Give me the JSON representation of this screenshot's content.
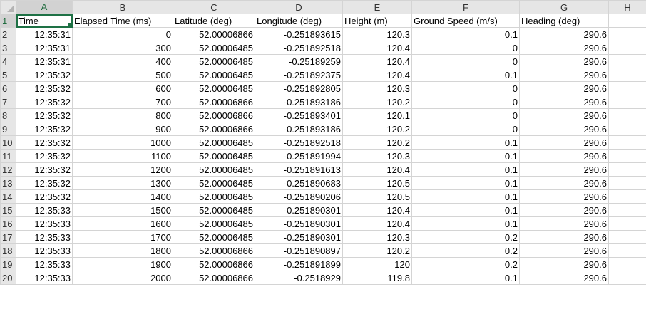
{
  "column_headers": [
    "A",
    "B",
    "C",
    "D",
    "E",
    "F",
    "G",
    "H"
  ],
  "header_row": [
    "Time",
    "Elapsed Time (ms)",
    "Latitude (deg)",
    "Longitude (deg)",
    "Height (m)",
    "Ground Speed (m/s)",
    "Heading (deg)",
    ""
  ],
  "rows": [
    [
      "12:35:31",
      "0",
      "52.00006866",
      "-0.251893615",
      "120.3",
      "0.1",
      "290.6"
    ],
    [
      "12:35:31",
      "300",
      "52.00006485",
      "-0.251892518",
      "120.4",
      "0",
      "290.6"
    ],
    [
      "12:35:31",
      "400",
      "52.00006485",
      "-0.25189259",
      "120.4",
      "0",
      "290.6"
    ],
    [
      "12:35:32",
      "500",
      "52.00006485",
      "-0.251892375",
      "120.4",
      "0.1",
      "290.6"
    ],
    [
      "12:35:32",
      "600",
      "52.00006485",
      "-0.251892805",
      "120.3",
      "0",
      "290.6"
    ],
    [
      "12:35:32",
      "700",
      "52.00006866",
      "-0.251893186",
      "120.2",
      "0",
      "290.6"
    ],
    [
      "12:35:32",
      "800",
      "52.00006866",
      "-0.251893401",
      "120.1",
      "0",
      "290.6"
    ],
    [
      "12:35:32",
      "900",
      "52.00006866",
      "-0.251893186",
      "120.2",
      "0",
      "290.6"
    ],
    [
      "12:35:32",
      "1000",
      "52.00006485",
      "-0.251892518",
      "120.2",
      "0.1",
      "290.6"
    ],
    [
      "12:35:32",
      "1100",
      "52.00006485",
      "-0.251891994",
      "120.3",
      "0.1",
      "290.6"
    ],
    [
      "12:35:32",
      "1200",
      "52.00006485",
      "-0.251891613",
      "120.4",
      "0.1",
      "290.6"
    ],
    [
      "12:35:32",
      "1300",
      "52.00006485",
      "-0.251890683",
      "120.5",
      "0.1",
      "290.6"
    ],
    [
      "12:35:32",
      "1400",
      "52.00006485",
      "-0.251890206",
      "120.5",
      "0.1",
      "290.6"
    ],
    [
      "12:35:33",
      "1500",
      "52.00006485",
      "-0.251890301",
      "120.4",
      "0.1",
      "290.6"
    ],
    [
      "12:35:33",
      "1600",
      "52.00006485",
      "-0.251890301",
      "120.4",
      "0.1",
      "290.6"
    ],
    [
      "12:35:33",
      "1700",
      "52.00006485",
      "-0.251890301",
      "120.3",
      "0.2",
      "290.6"
    ],
    [
      "12:35:33",
      "1800",
      "52.00006866",
      "-0.251890897",
      "120.2",
      "0.2",
      "290.6"
    ],
    [
      "12:35:33",
      "1900",
      "52.00006866",
      "-0.251891899",
      "120",
      "0.2",
      "290.6"
    ],
    [
      "12:35:33",
      "2000",
      "52.00006866",
      "-0.2518929",
      "119.8",
      "0.1",
      "290.6"
    ]
  ],
  "selected_cell": "A1",
  "colors": {
    "header_bg": "#e6e6e6",
    "selection": "#1e7145",
    "gridline": "#d4d4d4"
  }
}
